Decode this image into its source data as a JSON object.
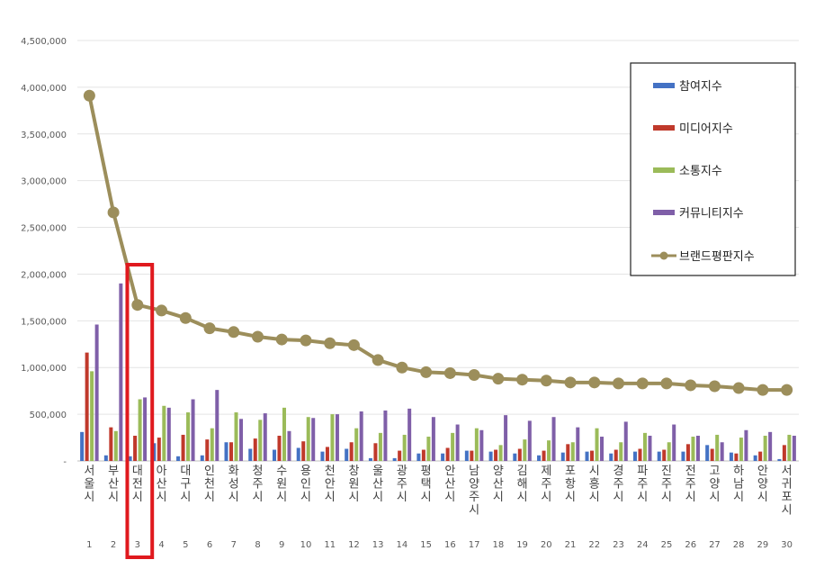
{
  "chart_data": {
    "type": "bar",
    "categories": [
      "서울시",
      "부산시",
      "대전시",
      "아산시",
      "대구시",
      "인천시",
      "화성시",
      "청주시",
      "수원시",
      "용인시",
      "천안시",
      "창원시",
      "울산시",
      "광주시",
      "평택시",
      "안산시",
      "남양주시",
      "양산시",
      "김해시",
      "제주시",
      "포항시",
      "시흥시",
      "경주시",
      "파주시",
      "진주시",
      "전주시",
      "고양시",
      "하남시",
      "안양시",
      "서귀포시"
    ],
    "ranks": [
      "1",
      "2",
      "3",
      "4",
      "5",
      "6",
      "7",
      "8",
      "9",
      "10",
      "11",
      "12",
      "13",
      "14",
      "15",
      "16",
      "17",
      "18",
      "19",
      "20",
      "21",
      "22",
      "23",
      "24",
      "25",
      "26",
      "27",
      "28",
      "29",
      "30"
    ],
    "ylim": [
      0,
      4500000
    ],
    "yticks": [
      "-",
      "500,000",
      "1,000,000",
      "1,500,000",
      "2,000,000",
      "2,500,000",
      "3,000,000",
      "3,500,000",
      "4,000,000",
      "4,500,000"
    ],
    "grid": true,
    "legend_position": "top-right",
    "highlight_index": 2,
    "highlight_color": "#e0191e",
    "series": [
      {
        "name": "참여지수",
        "kind": "bar",
        "color": "#4472c4",
        "values": [
          310000,
          60000,
          50000,
          190000,
          50000,
          60000,
          200000,
          130000,
          120000,
          140000,
          100000,
          130000,
          30000,
          30000,
          80000,
          80000,
          110000,
          100000,
          80000,
          60000,
          90000,
          100000,
          80000,
          100000,
          100000,
          100000,
          170000,
          90000,
          60000,
          20000
        ]
      },
      {
        "name": "미디어지수",
        "kind": "bar",
        "color": "#c0392b",
        "values": [
          1160000,
          360000,
          270000,
          250000,
          280000,
          230000,
          200000,
          240000,
          270000,
          210000,
          150000,
          200000,
          190000,
          110000,
          120000,
          140000,
          110000,
          120000,
          130000,
          110000,
          180000,
          110000,
          120000,
          130000,
          120000,
          180000,
          130000,
          80000,
          100000,
          170000
        ]
      },
      {
        "name": "소통지수",
        "kind": "bar",
        "color": "#9bbb59",
        "values": [
          960000,
          320000,
          660000,
          590000,
          520000,
          350000,
          520000,
          440000,
          570000,
          470000,
          500000,
          350000,
          300000,
          280000,
          260000,
          300000,
          350000,
          170000,
          230000,
          220000,
          200000,
          350000,
          200000,
          300000,
          200000,
          260000,
          280000,
          250000,
          270000,
          280000
        ]
      },
      {
        "name": "커뮤니티지수",
        "kind": "bar",
        "color": "#7f5fa8",
        "values": [
          1460000,
          1900000,
          680000,
          570000,
          660000,
          760000,
          450000,
          510000,
          320000,
          460000,
          500000,
          530000,
          540000,
          560000,
          470000,
          390000,
          330000,
          490000,
          430000,
          470000,
          360000,
          260000,
          420000,
          270000,
          390000,
          270000,
          200000,
          330000,
          310000,
          270000
        ]
      },
      {
        "name": "브랜드평판지수",
        "kind": "line",
        "color": "#9c8e5b",
        "values": [
          3910000,
          2660000,
          1670000,
          1610000,
          1530000,
          1420000,
          1380000,
          1330000,
          1300000,
          1290000,
          1260000,
          1240000,
          1080000,
          1000000,
          950000,
          940000,
          920000,
          880000,
          870000,
          860000,
          840000,
          840000,
          830000,
          830000,
          830000,
          810000,
          800000,
          780000,
          760000,
          760000
        ]
      }
    ]
  }
}
